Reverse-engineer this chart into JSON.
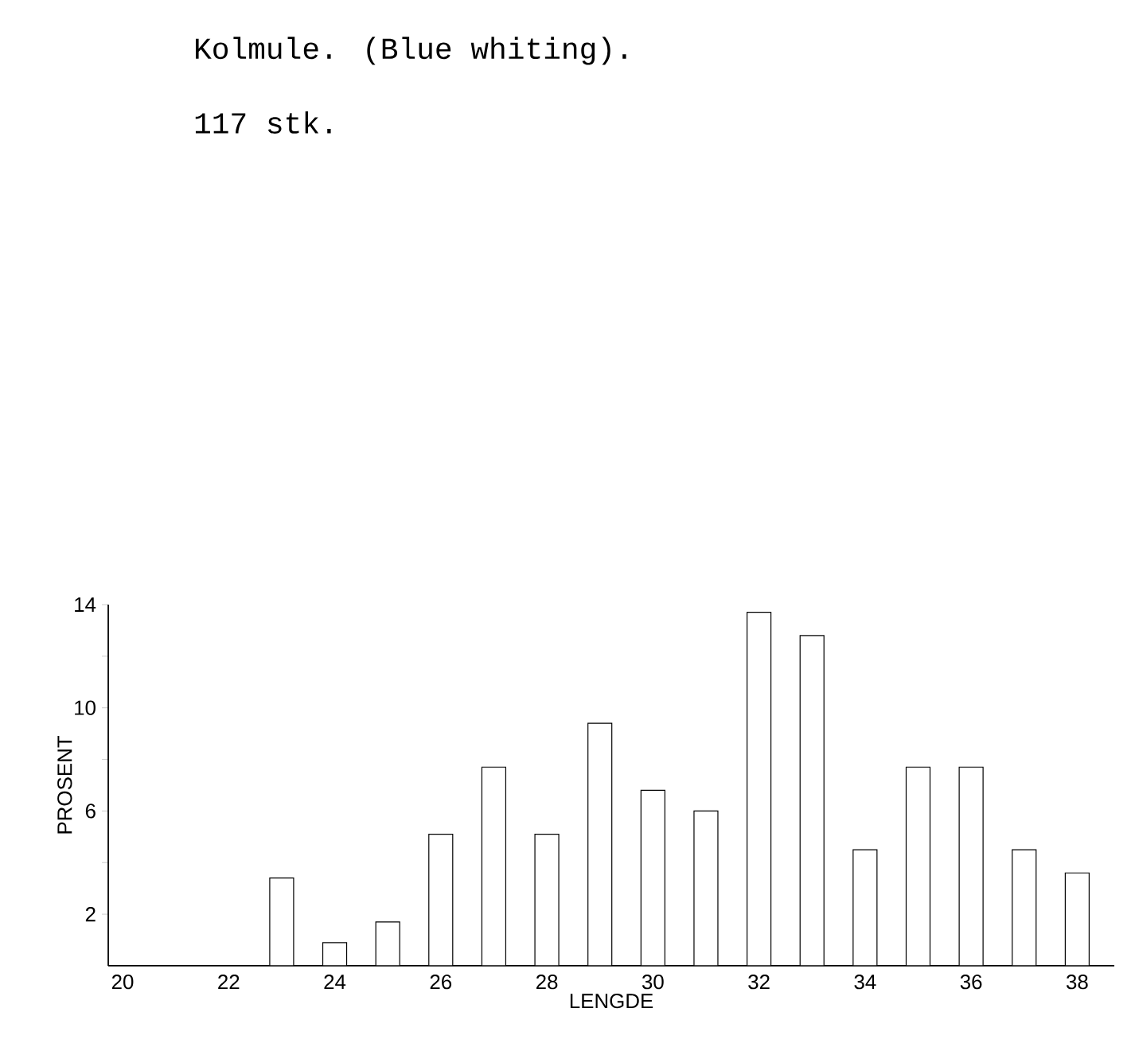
{
  "chart_data": {
    "type": "bar",
    "title": "Kolmule. (Blue whiting).",
    "subtitle": "117 stk.",
    "xlabel": "LENGDE",
    "ylabel": "PROSENT",
    "x": [
      23,
      24,
      25,
      26,
      27,
      28,
      29,
      30,
      31,
      32,
      33,
      34,
      35,
      36,
      37,
      38
    ],
    "values": [
      3.4,
      0.9,
      1.7,
      5.1,
      7.7,
      5.1,
      9.4,
      6.8,
      6.0,
      13.7,
      12.8,
      4.5,
      7.7,
      7.7,
      4.5,
      3.6
    ],
    "color": "#ffffff",
    "xlim": [
      19.73,
      38.7
    ],
    "ylim": [
      0,
      14
    ],
    "xticks": [
      20,
      22,
      24,
      26,
      28,
      30,
      32,
      34,
      36,
      38
    ],
    "yticks": [
      {
        "value": 2,
        "label": "2"
      },
      {
        "value": 4,
        "label": null
      },
      {
        "value": 6,
        "label": "6"
      },
      {
        "value": 8,
        "label": null
      },
      {
        "value": 10,
        "label": "10"
      },
      {
        "value": 12,
        "label": null
      },
      {
        "value": 14,
        "label": "14"
      }
    ],
    "grid": false
  }
}
